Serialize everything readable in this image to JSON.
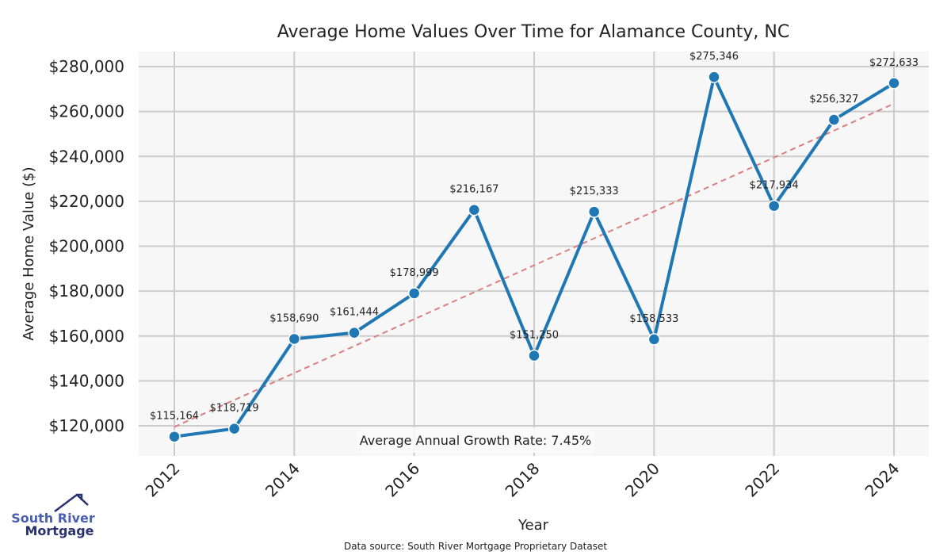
{
  "chart_data": {
    "type": "line",
    "title": "Average Home Values Over Time for Alamance County, NC",
    "xlabel": "Year",
    "ylabel": "Average Home Value ($)",
    "x": [
      2012,
      2013,
      2014,
      2015,
      2016,
      2017,
      2018,
      2019,
      2020,
      2021,
      2022,
      2023,
      2024
    ],
    "series": [
      {
        "name": "Average Home Value",
        "values": [
          115164,
          118719,
          158690,
          161444,
          178999,
          216167,
          151250,
          215333,
          158533,
          275346,
          217934,
          256327,
          272633
        ],
        "color": "#1f77b4"
      }
    ],
    "data_labels": [
      "$115,164",
      "$118,719",
      "$158,690",
      "$161,444",
      "$178,999",
      "$216,167",
      "$151,250",
      "$215,333",
      "$158,533",
      "$275,346",
      "$217,934",
      "$256,327",
      "$272,633"
    ],
    "trend": {
      "name": "Trend",
      "start": [
        2012,
        119500
      ],
      "end": [
        2024,
        263500
      ],
      "color": "#d98080",
      "style": "dashed"
    },
    "xticks": [
      2012,
      2014,
      2016,
      2018,
      2020,
      2022,
      2024
    ],
    "xtick_labels": [
      "2012",
      "2014",
      "2016",
      "2018",
      "2020",
      "2022",
      "2024"
    ],
    "yticks": [
      120000,
      140000,
      160000,
      180000,
      200000,
      220000,
      240000,
      260000,
      280000
    ],
    "ytick_labels": [
      "$120,000",
      "$140,000",
      "$160,000",
      "$180,000",
      "$200,000",
      "$220,000",
      "$240,000",
      "$260,000",
      "$280,000"
    ],
    "xlim": [
      2011.4,
      2024.6
    ],
    "ylim": [
      106500,
      286500
    ],
    "grid": true,
    "annotation": "Average Annual Growth Rate: 7.45%"
  },
  "footer": {
    "source": "Data source: South River Mortgage Proprietary Dataset"
  },
  "logo": {
    "line1": "South River",
    "line2": "Mortgage"
  }
}
